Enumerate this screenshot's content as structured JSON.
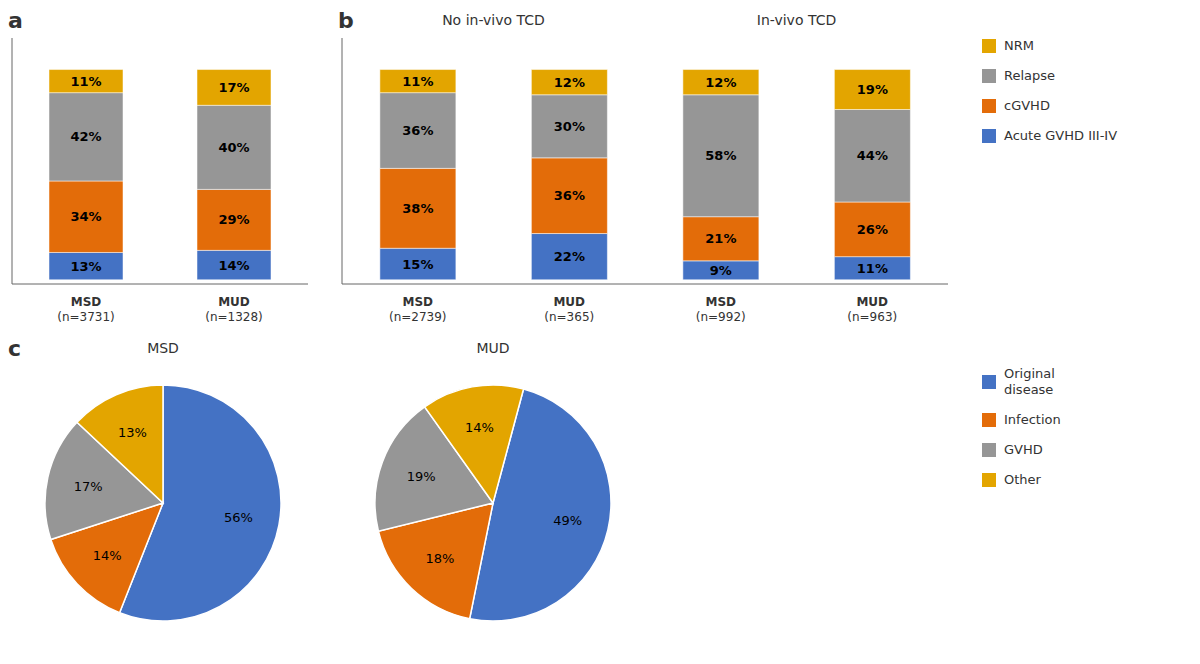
{
  "chart_data": [
    {
      "type": "bar",
      "title": "a",
      "stacked": true,
      "data_labels": true,
      "grid": false,
      "tick_labels": "x",
      "categories": [
        "MSD\n(n=3731)",
        "MUD\n(n=1328)"
      ],
      "ylim": [
        -2,
        115
      ],
      "series": [
        {
          "name": "Acute GVHD III-IV",
          "color": "#4472C4",
          "values": [
            13,
            14
          ],
          "value_labels": [
            "13%",
            "14%"
          ]
        },
        {
          "name": "cGVHD",
          "color": "#E36C09",
          "values": [
            34,
            29
          ],
          "value_labels": [
            "34%",
            "29%"
          ]
        },
        {
          "name": "Relapse",
          "color": "#969696",
          "values": [
            42,
            40
          ],
          "value_labels": [
            "42%",
            "40%"
          ]
        },
        {
          "name": "NRM",
          "color": "#E3A500",
          "values": [
            11,
            17
          ],
          "value_labels": [
            "11%",
            "17%"
          ]
        }
      ]
    },
    {
      "type": "bar",
      "title": "b",
      "stacked": true,
      "data_labels": true,
      "grid": false,
      "tick_labels": "x",
      "legend": "right",
      "annotations": [
        "No in-vivo TCD",
        "In-vivo TCD"
      ],
      "categories": [
        "MSD\n(n=2739)",
        "MUD\n(n=365)",
        "MSD\n(n=992)",
        "MUD\n(n=963)"
      ],
      "ylim": [
        -2,
        115
      ],
      "series": [
        {
          "name": "Acute GVHD III-IV",
          "color": "#4472C4",
          "values": [
            15,
            22,
            9,
            11
          ],
          "value_labels": [
            "15%",
            "22%",
            "9%",
            "11%"
          ]
        },
        {
          "name": "cGVHD",
          "color": "#E36C09",
          "values": [
            38,
            36,
            21,
            26
          ],
          "value_labels": [
            "38%",
            "36%",
            "21%",
            "26%"
          ]
        },
        {
          "name": "Relapse",
          "color": "#969696",
          "values": [
            36,
            30,
            58,
            44
          ],
          "value_labels": [
            "36%",
            "30%",
            "58%",
            "44%"
          ]
        },
        {
          "name": "NRM",
          "color": "#E3A500",
          "values": [
            11,
            12,
            12,
            19
          ],
          "value_labels": [
            "11%",
            "12%",
            "12%",
            "19%"
          ]
        }
      ]
    },
    {
      "type": "pie",
      "title": "MSD",
      "annotations": [
        "c"
      ],
      "data_labels": true,
      "categories": [
        "Original\ndisease",
        "Infection",
        "GVHD",
        "Other"
      ],
      "values": [
        56,
        14,
        17,
        13
      ],
      "value_labels": [
        "56%",
        "14%",
        "17%",
        "13%"
      ],
      "colors": [
        "#4472C4",
        "#E36C09",
        "#969696",
        "#E3A500"
      ]
    },
    {
      "type": "pie",
      "title": "MUD",
      "data_labels": true,
      "legend": "right",
      "categories": [
        "Original\ndisease",
        "Infection",
        "GVHD",
        "Other"
      ],
      "values": [
        49,
        18,
        19,
        14
      ],
      "value_labels": [
        "49%",
        "18%",
        "19%",
        "14%"
      ],
      "colors": [
        "#4472C4",
        "#E36C09",
        "#969696",
        "#E3A500"
      ]
    }
  ]
}
